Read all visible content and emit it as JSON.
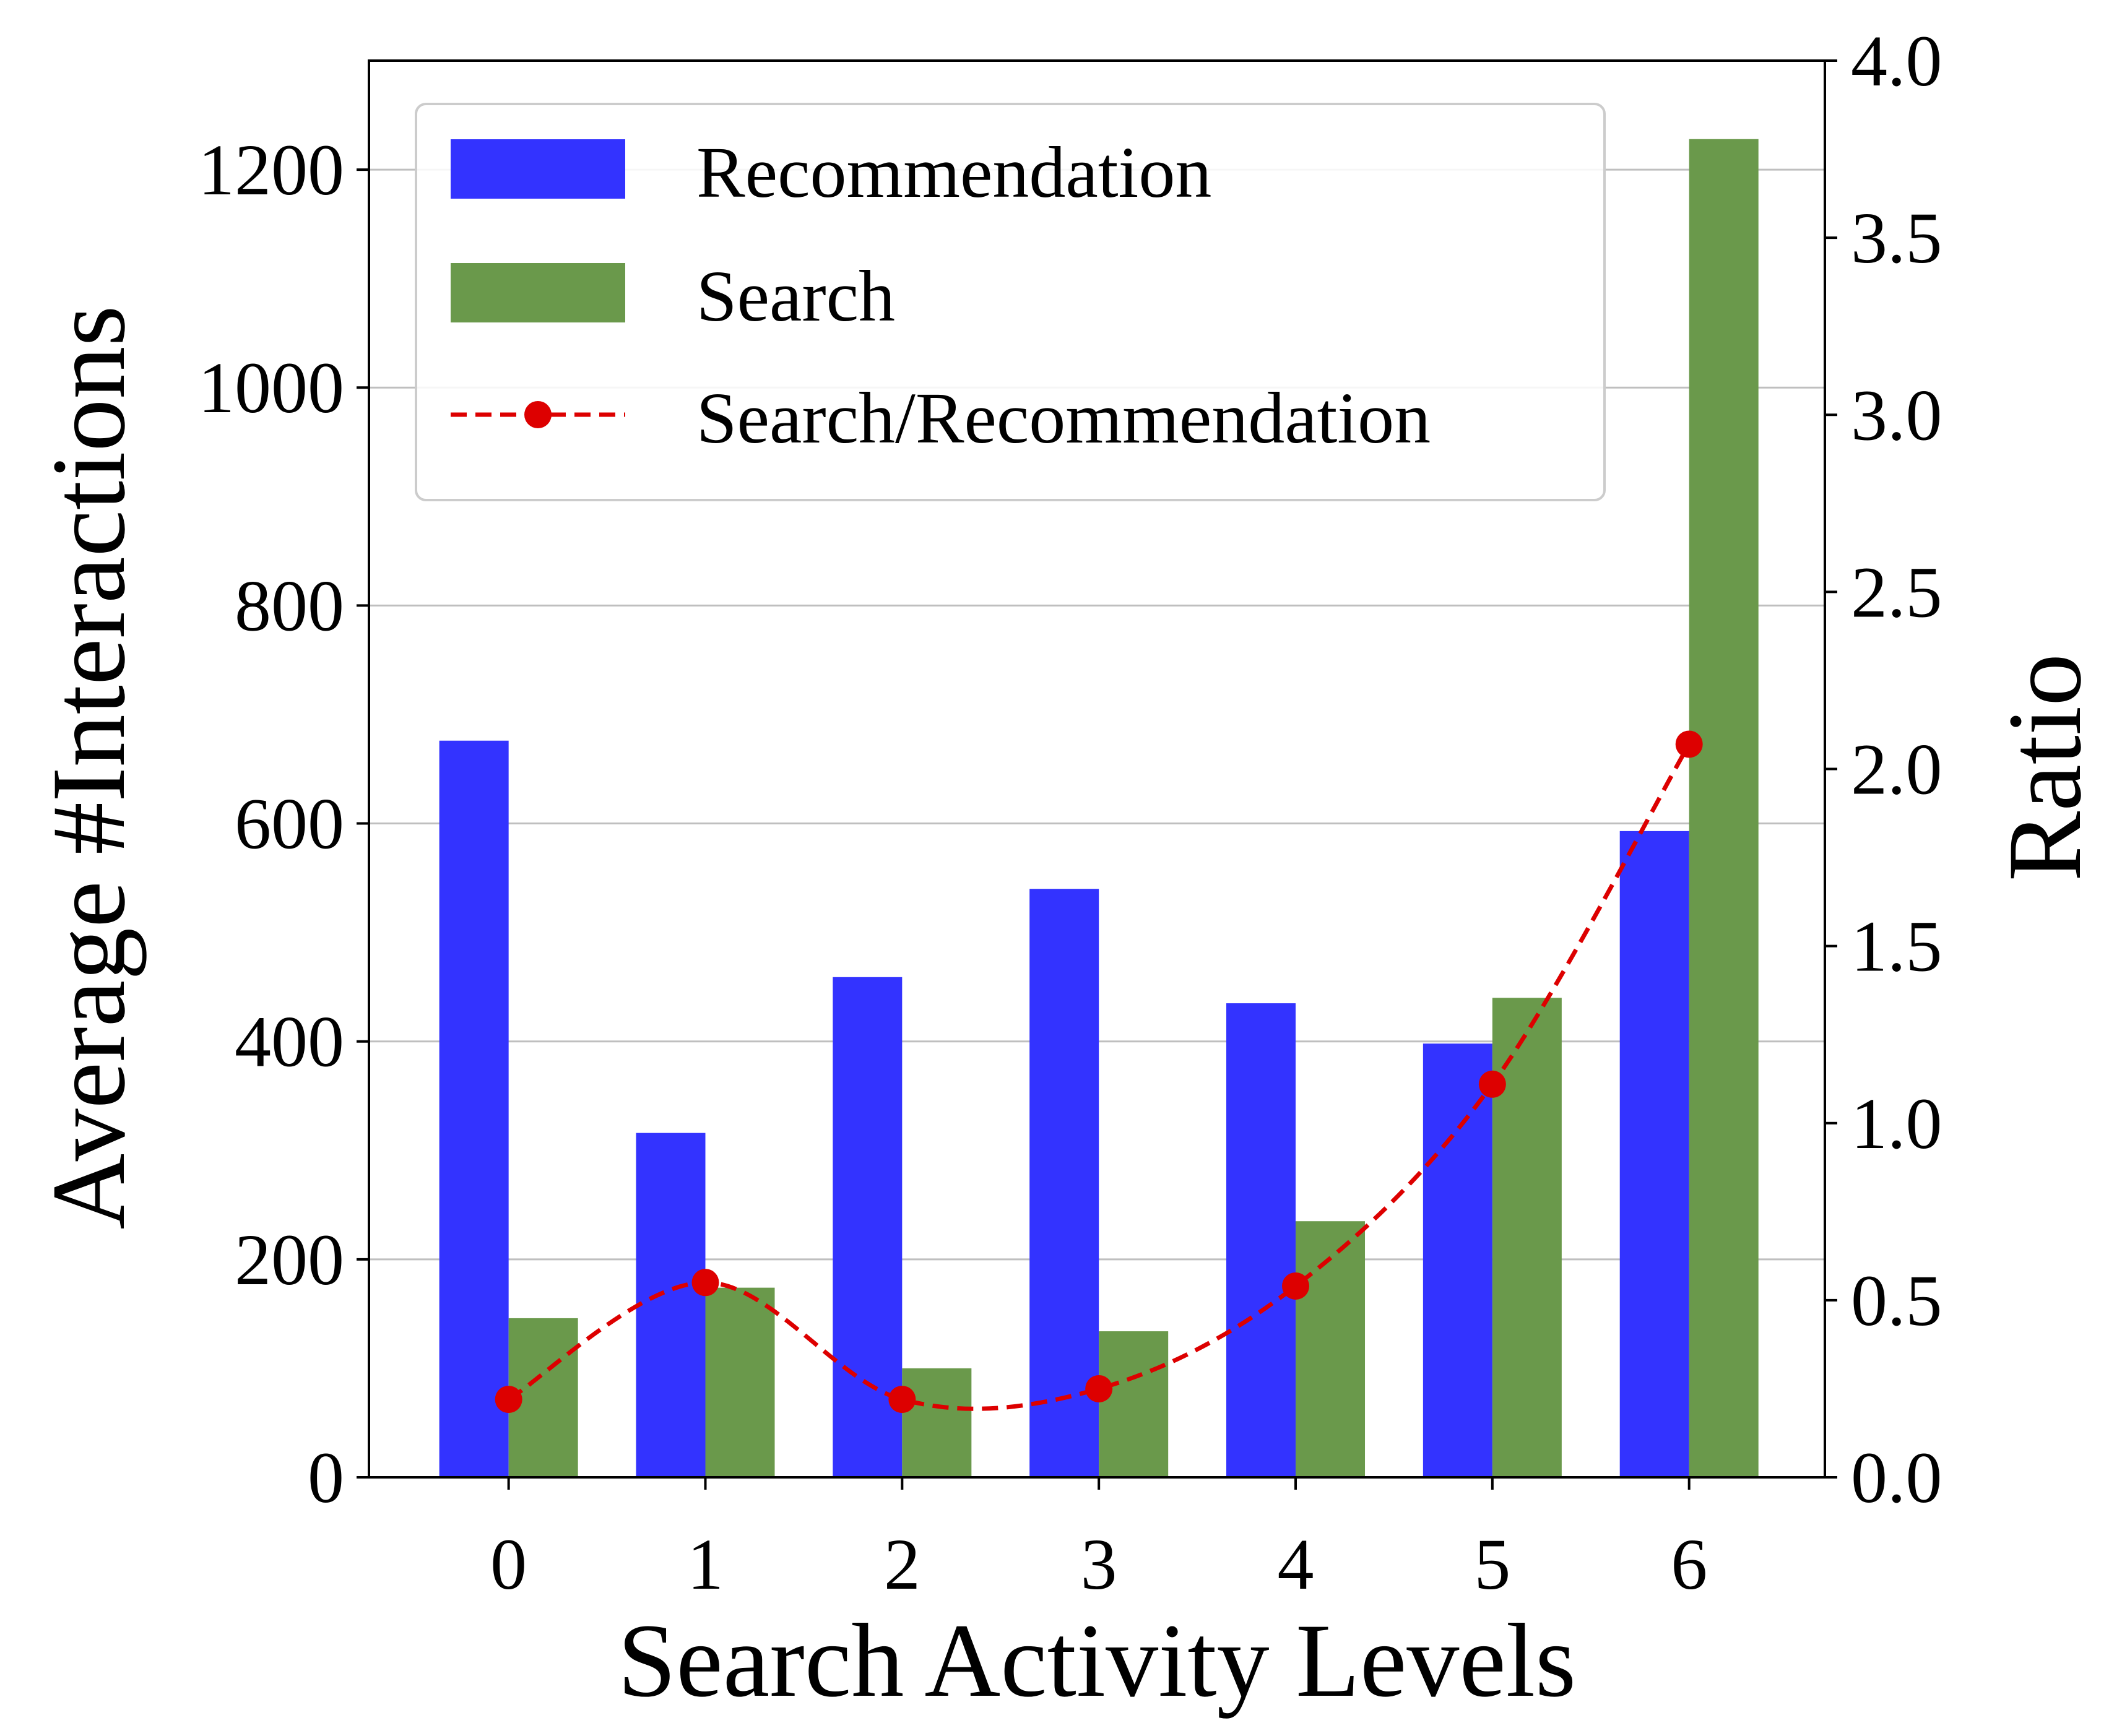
{
  "chart_data": {
    "type": "bar",
    "xlabel": "Search Activity Levels",
    "ylabel": "Average #Interactions",
    "y2label": "Ratio",
    "categories": [
      "0",
      "1",
      "2",
      "3",
      "4",
      "5",
      "6"
    ],
    "series": [
      {
        "name": "Recommendation",
        "type": "bar",
        "axis": "left",
        "color": "#3333ff",
        "values": [
          676,
          316,
          459,
          540,
          435,
          398,
          593
        ]
      },
      {
        "name": "Search",
        "type": "bar",
        "axis": "left",
        "color": "#6a994b",
        "values": [
          146,
          174,
          100,
          134,
          235,
          440,
          1228
        ]
      },
      {
        "name": "Search/Recommendation",
        "type": "line",
        "axis": "right",
        "color": "#dd0000",
        "style": "dashed",
        "marker": "circle",
        "values": [
          0.22,
          0.55,
          0.22,
          0.25,
          0.54,
          1.11,
          2.07
        ]
      }
    ],
    "ylim": [
      0,
      1300
    ],
    "yticks": [
      "0",
      "200",
      "400",
      "600",
      "800",
      "1000",
      "1200"
    ],
    "y2lim": [
      0,
      4.0
    ],
    "y2ticks": [
      "0.0",
      "0.5",
      "1.0",
      "1.5",
      "2.0",
      "2.5",
      "3.0",
      "3.5",
      "4.0"
    ],
    "grid": "horizontal",
    "legend_position": "top-left"
  }
}
